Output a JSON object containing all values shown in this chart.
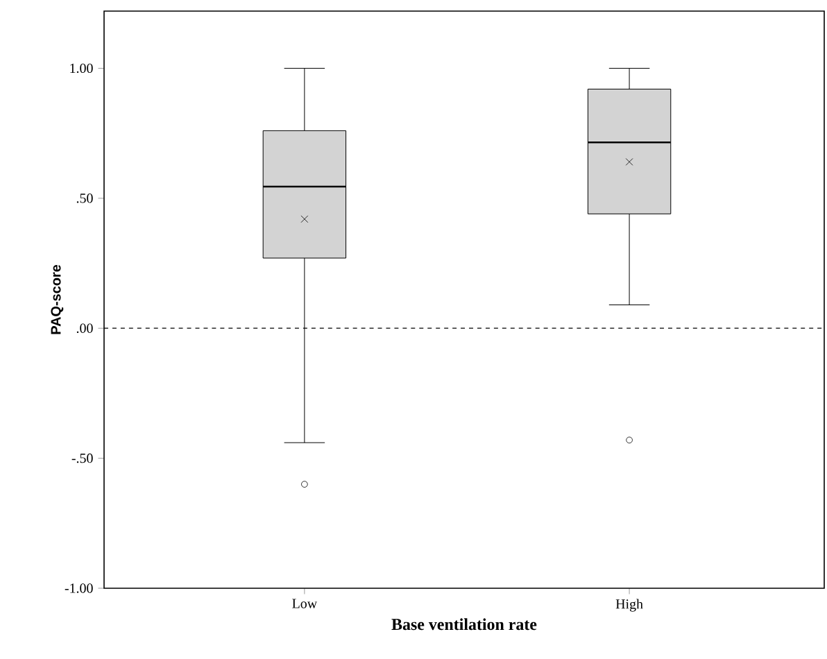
{
  "chart_data": {
    "type": "box",
    "xlabel": "Base ventilation rate",
    "ylabel": "PAQ-score",
    "categories": [
      "Low",
      "High"
    ],
    "boxes": [
      {
        "low": -0.44,
        "q1": 0.27,
        "median": 0.545,
        "q3": 0.76,
        "high": 1.0,
        "mean": 0.42,
        "outliers": [
          -0.6
        ]
      },
      {
        "low": 0.09,
        "q1": 0.44,
        "median": 0.715,
        "q3": 0.92,
        "high": 1.0,
        "mean": 0.64,
        "outliers": [
          -0.43
        ]
      }
    ],
    "color": "#d3d3d3",
    "ylim": [
      -1,
      1.22
    ],
    "yticks": [
      {
        "value": -1,
        "label": "-1.00"
      },
      {
        "value": -0.5,
        "label": "-.50"
      },
      {
        "value": 0,
        "label": ".00"
      },
      {
        "value": 0.5,
        "label": ".50"
      },
      {
        "value": 1,
        "label": "1.00"
      }
    ],
    "ref_lines": [
      {
        "axis": "y",
        "value": 0,
        "line_style": "dashed"
      }
    ],
    "grid": false
  }
}
